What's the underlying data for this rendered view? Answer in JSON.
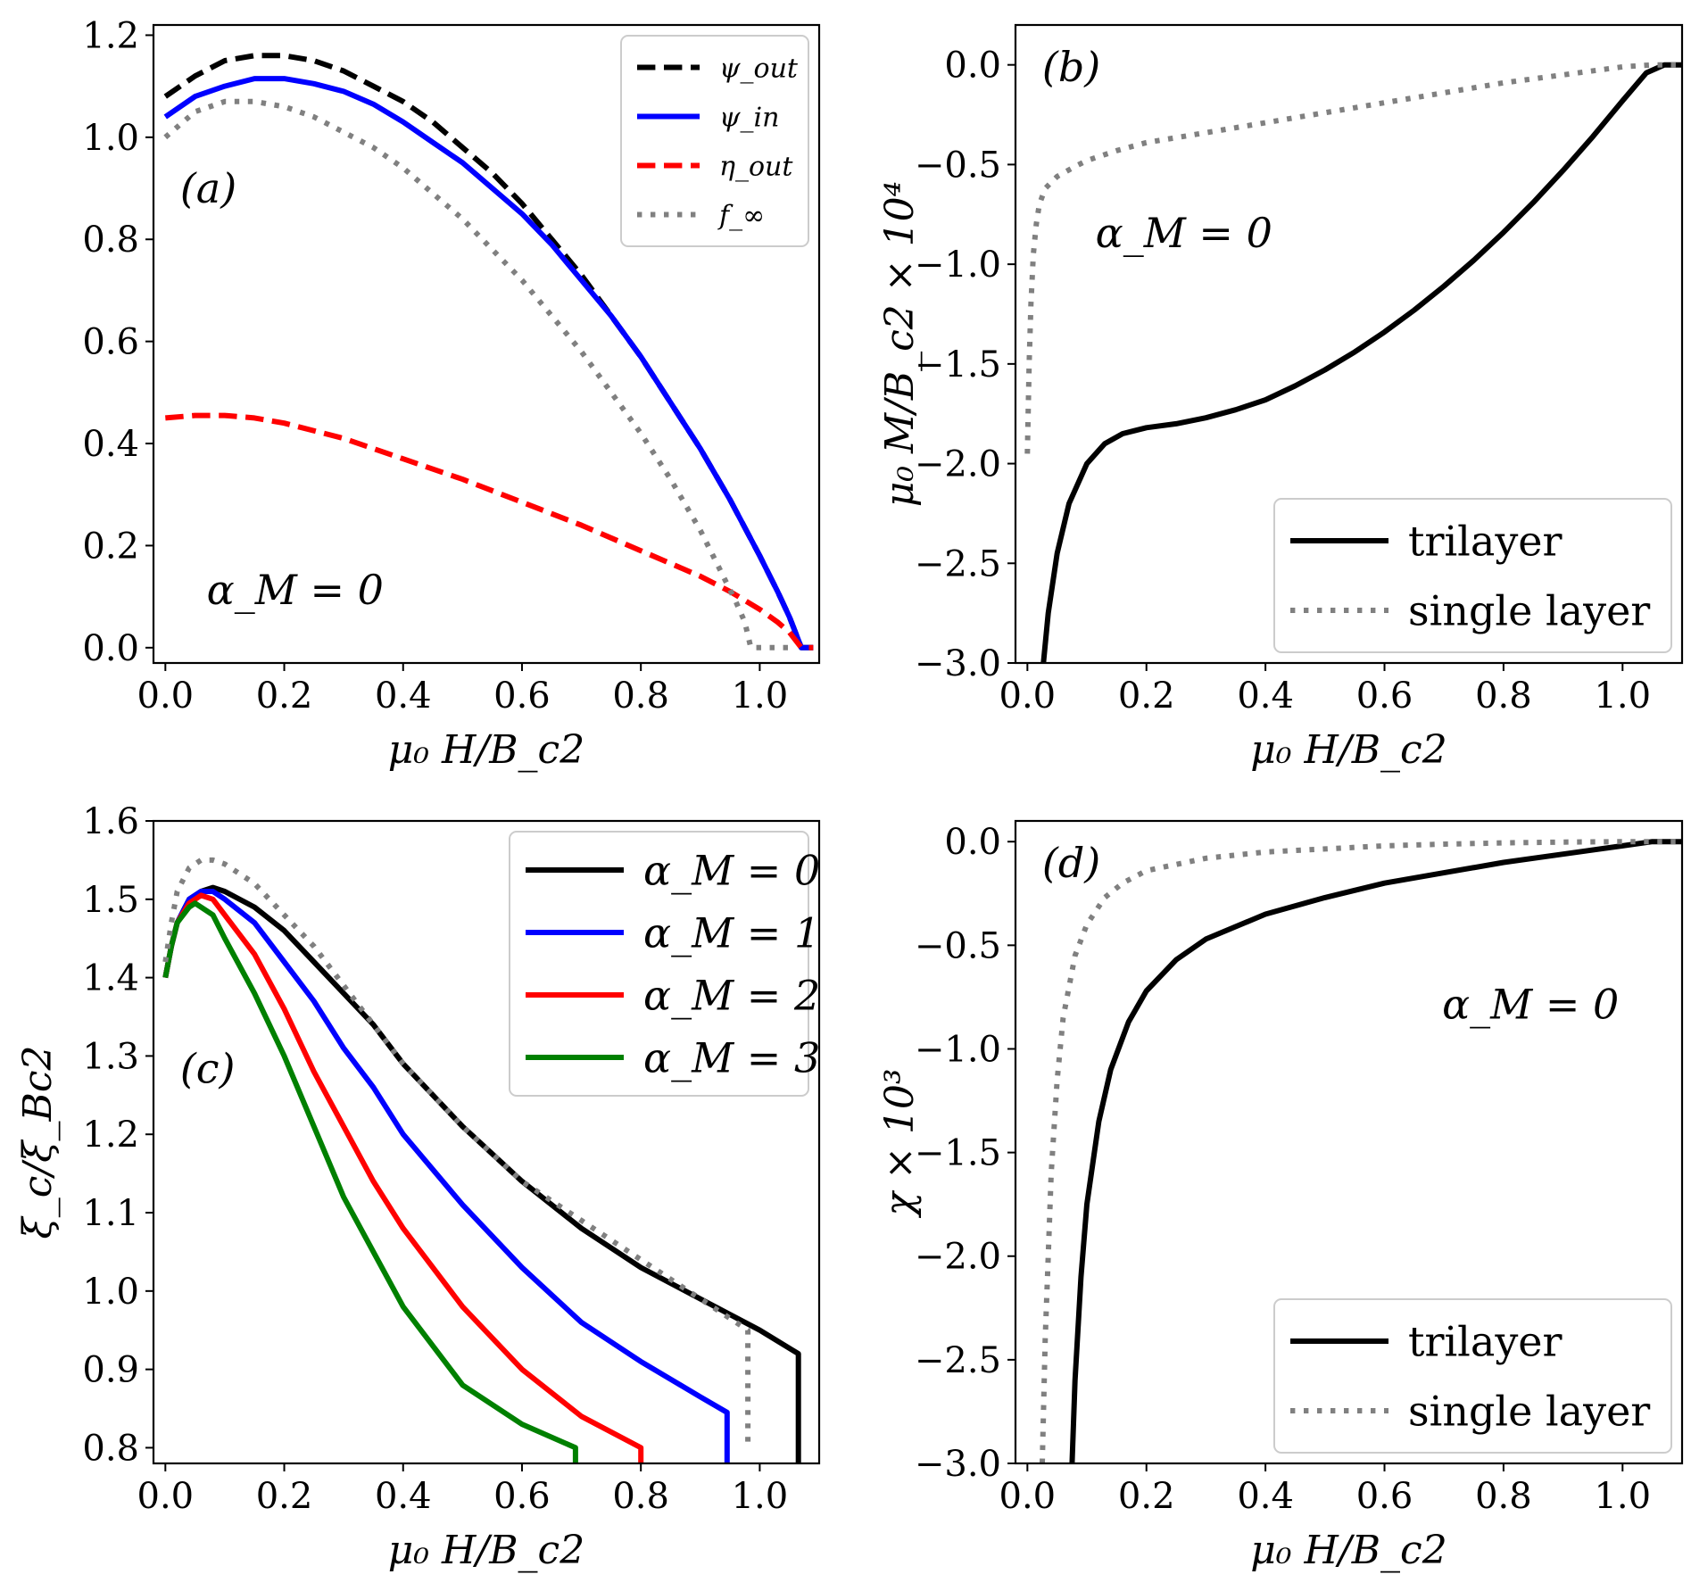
{
  "chart_data": [
    {
      "panel": "a",
      "type": "line",
      "panel_label": "(a)",
      "annotation": "α_M = 0",
      "xlabel": "μ₀ H/B_c2",
      "ylabel": "",
      "xlim": [
        -0.02,
        1.1
      ],
      "ylim": [
        -0.03,
        1.22
      ],
      "xticks": [
        0.0,
        0.2,
        0.4,
        0.6,
        0.8,
        1.0
      ],
      "yticks": [
        0.0,
        0.2,
        0.4,
        0.6,
        0.8,
        1.0,
        1.2
      ],
      "xtick_labels": [
        "0.0",
        "0.2",
        "0.4",
        "0.6",
        "0.8",
        "1.0"
      ],
      "ytick_labels": [
        "0.0",
        "0.2",
        "0.4",
        "0.6",
        "0.8",
        "1.0",
        "1.2"
      ],
      "legend": "top-right",
      "series": [
        {
          "name": "ψ_out",
          "color": "#000000",
          "style": "dashed",
          "x": [
            0,
            0.05,
            0.1,
            0.15,
            0.2,
            0.25,
            0.3,
            0.35,
            0.4,
            0.45,
            0.5,
            0.55,
            0.6,
            0.65,
            0.7,
            0.75,
            0.8,
            0.85,
            0.9,
            0.95,
            1.0,
            1.03,
            1.05,
            1.06,
            1.07,
            1.09
          ],
          "y": [
            1.08,
            1.12,
            1.15,
            1.16,
            1.16,
            1.15,
            1.13,
            1.1,
            1.07,
            1.03,
            0.98,
            0.93,
            0.87,
            0.8,
            0.73,
            0.65,
            0.57,
            0.48,
            0.39,
            0.29,
            0.18,
            0.11,
            0.06,
            0.03,
            0.0,
            0.0
          ]
        },
        {
          "name": "ψ_in",
          "color": "#0000ff",
          "style": "solid",
          "x": [
            0,
            0.05,
            0.1,
            0.15,
            0.2,
            0.25,
            0.3,
            0.35,
            0.4,
            0.45,
            0.5,
            0.55,
            0.6,
            0.65,
            0.7,
            0.75,
            0.8,
            0.85,
            0.9,
            0.95,
            1.0,
            1.03,
            1.05,
            1.06,
            1.07,
            1.09
          ],
          "y": [
            1.04,
            1.08,
            1.1,
            1.115,
            1.115,
            1.105,
            1.09,
            1.065,
            1.03,
            0.99,
            0.95,
            0.9,
            0.85,
            0.79,
            0.72,
            0.65,
            0.57,
            0.48,
            0.39,
            0.29,
            0.18,
            0.11,
            0.06,
            0.03,
            0.0,
            0.0
          ]
        },
        {
          "name": "η_out",
          "color": "#ff0000",
          "style": "dashed",
          "x": [
            0,
            0.05,
            0.1,
            0.15,
            0.2,
            0.3,
            0.4,
            0.5,
            0.6,
            0.7,
            0.8,
            0.9,
            0.95,
            1.0,
            1.03,
            1.05,
            1.06,
            1.07,
            1.09
          ],
          "y": [
            0.45,
            0.455,
            0.455,
            0.45,
            0.44,
            0.41,
            0.37,
            0.33,
            0.285,
            0.24,
            0.19,
            0.14,
            0.11,
            0.075,
            0.05,
            0.03,
            0.015,
            0.0,
            0.0
          ]
        },
        {
          "name": "f_∞",
          "color": "#808080",
          "style": "dotted",
          "x": [
            0,
            0.05,
            0.1,
            0.15,
            0.2,
            0.25,
            0.3,
            0.35,
            0.4,
            0.45,
            0.5,
            0.55,
            0.6,
            0.65,
            0.7,
            0.75,
            0.8,
            0.85,
            0.9,
            0.93,
            0.96,
            0.975,
            0.985,
            1.0,
            1.06
          ],
          "y": [
            1.0,
            1.05,
            1.07,
            1.07,
            1.06,
            1.04,
            1.01,
            0.98,
            0.94,
            0.89,
            0.84,
            0.78,
            0.72,
            0.65,
            0.58,
            0.5,
            0.42,
            0.33,
            0.23,
            0.16,
            0.09,
            0.05,
            0.0,
            0.0,
            0.0
          ]
        }
      ]
    },
    {
      "panel": "b",
      "type": "line",
      "panel_label": "(b)",
      "annotation": "α_M = 0",
      "xlabel": "μ₀ H/B_c2",
      "ylabel": "μ₀ M/B_c2 × 10⁴",
      "xlim": [
        -0.02,
        1.1
      ],
      "ylim": [
        -3.0,
        0.2
      ],
      "xticks": [
        0.0,
        0.2,
        0.4,
        0.6,
        0.8,
        1.0
      ],
      "yticks": [
        -3.0,
        -2.5,
        -2.0,
        -1.5,
        -1.0,
        -0.5,
        0.0
      ],
      "xtick_labels": [
        "0.0",
        "0.2",
        "0.4",
        "0.6",
        "0.8",
        "1.0"
      ],
      "ytick_labels": [
        "−3.0",
        "−2.5",
        "−2.0",
        "−1.5",
        "−1.0",
        "−0.5",
        "0.0"
      ],
      "legend": "bottom-right",
      "series": [
        {
          "name": "trilayer",
          "color": "#000000",
          "style": "solid",
          "x": [
            0.027,
            0.035,
            0.05,
            0.07,
            0.1,
            0.13,
            0.16,
            0.2,
            0.25,
            0.3,
            0.35,
            0.4,
            0.45,
            0.5,
            0.55,
            0.6,
            0.65,
            0.7,
            0.75,
            0.8,
            0.85,
            0.9,
            0.95,
            1.0,
            1.04,
            1.07,
            1.1
          ],
          "y": [
            -3.0,
            -2.75,
            -2.45,
            -2.2,
            -2.0,
            -1.9,
            -1.85,
            -1.82,
            -1.8,
            -1.77,
            -1.73,
            -1.68,
            -1.61,
            -1.53,
            -1.44,
            -1.34,
            -1.23,
            -1.11,
            -0.98,
            -0.84,
            -0.69,
            -0.53,
            -0.36,
            -0.18,
            -0.04,
            0.0,
            0.0
          ]
        },
        {
          "name": "single layer",
          "color": "#808080",
          "style": "dotted",
          "x": [
            0.0,
            0.003,
            0.006,
            0.01,
            0.015,
            0.02,
            0.03,
            0.05,
            0.08,
            0.1,
            0.15,
            0.2,
            0.3,
            0.4,
            0.5,
            0.6,
            0.7,
            0.8,
            0.9,
            1.0,
            1.05,
            1.1
          ],
          "y": [
            -1.95,
            -1.5,
            -1.2,
            -0.95,
            -0.8,
            -0.7,
            -0.62,
            -0.56,
            -0.51,
            -0.48,
            -0.43,
            -0.39,
            -0.34,
            -0.29,
            -0.24,
            -0.19,
            -0.14,
            -0.09,
            -0.05,
            -0.01,
            0.0,
            0.0
          ]
        }
      ]
    },
    {
      "panel": "c",
      "type": "line",
      "panel_label": "(c)",
      "annotation": "",
      "xlabel": "μ₀ H/B_c2",
      "ylabel": "ξ_c/ξ_Bc2",
      "xlim": [
        -0.02,
        1.1
      ],
      "ylim": [
        0.78,
        1.6
      ],
      "xticks": [
        0.0,
        0.2,
        0.4,
        0.6,
        0.8,
        1.0
      ],
      "yticks": [
        0.8,
        0.9,
        1.0,
        1.1,
        1.2,
        1.3,
        1.4,
        1.5,
        1.6
      ],
      "xtick_labels": [
        "0.0",
        "0.2",
        "0.4",
        "0.6",
        "0.8",
        "1.0"
      ],
      "ytick_labels": [
        "0.8",
        "0.9",
        "1.0",
        "1.1",
        "1.2",
        "1.3",
        "1.4",
        "1.5",
        "1.6"
      ],
      "legend": "top-right",
      "series": [
        {
          "name": "α_M = 0",
          "color": "#000000",
          "style": "solid",
          "x": [
            0,
            0.01,
            0.02,
            0.04,
            0.06,
            0.08,
            0.1,
            0.15,
            0.2,
            0.25,
            0.3,
            0.35,
            0.4,
            0.5,
            0.6,
            0.7,
            0.8,
            0.9,
            1.0,
            1.065,
            1.065
          ],
          "y": [
            1.4,
            1.44,
            1.47,
            1.5,
            1.51,
            1.515,
            1.51,
            1.49,
            1.46,
            1.42,
            1.38,
            1.34,
            1.29,
            1.21,
            1.14,
            1.08,
            1.03,
            0.99,
            0.95,
            0.92,
            0.78
          ]
        },
        {
          "name": "α_M = 1",
          "color": "#0000ff",
          "style": "solid",
          "x": [
            0,
            0.01,
            0.02,
            0.04,
            0.06,
            0.08,
            0.1,
            0.15,
            0.2,
            0.25,
            0.3,
            0.35,
            0.4,
            0.5,
            0.6,
            0.7,
            0.8,
            0.9,
            0.945,
            0.945
          ],
          "y": [
            1.4,
            1.44,
            1.47,
            1.5,
            1.51,
            1.51,
            1.5,
            1.47,
            1.42,
            1.37,
            1.31,
            1.26,
            1.2,
            1.11,
            1.03,
            0.96,
            0.91,
            0.865,
            0.845,
            0.78
          ]
        },
        {
          "name": "α_M = 2",
          "color": "#ff0000",
          "style": "solid",
          "x": [
            0,
            0.01,
            0.02,
            0.04,
            0.06,
            0.08,
            0.1,
            0.15,
            0.2,
            0.25,
            0.3,
            0.35,
            0.4,
            0.5,
            0.6,
            0.7,
            0.8,
            0.8
          ],
          "y": [
            1.4,
            1.44,
            1.47,
            1.495,
            1.505,
            1.5,
            1.48,
            1.43,
            1.36,
            1.28,
            1.21,
            1.14,
            1.08,
            0.98,
            0.9,
            0.84,
            0.8,
            0.78
          ]
        },
        {
          "name": "α_M = 3",
          "color": "#008000",
          "style": "solid",
          "x": [
            0,
            0.01,
            0.02,
            0.04,
            0.05,
            0.06,
            0.08,
            0.1,
            0.15,
            0.2,
            0.25,
            0.3,
            0.35,
            0.4,
            0.5,
            0.6,
            0.69,
            0.69
          ],
          "y": [
            1.4,
            1.44,
            1.47,
            1.49,
            1.495,
            1.49,
            1.48,
            1.45,
            1.38,
            1.3,
            1.21,
            1.12,
            1.05,
            0.98,
            0.88,
            0.83,
            0.8,
            0.78
          ]
        },
        {
          "name": "",
          "color": "#808080",
          "style": "dotted",
          "x": [
            0,
            0.01,
            0.02,
            0.04,
            0.06,
            0.08,
            0.1,
            0.15,
            0.2,
            0.25,
            0.3,
            0.35,
            0.4,
            0.5,
            0.6,
            0.7,
            0.8,
            0.9,
            0.98,
            0.98
          ],
          "y": [
            1.42,
            1.47,
            1.51,
            1.54,
            1.55,
            1.55,
            1.545,
            1.52,
            1.48,
            1.44,
            1.39,
            1.34,
            1.29,
            1.21,
            1.14,
            1.09,
            1.04,
            0.99,
            0.95,
            0.8
          ]
        }
      ]
    },
    {
      "panel": "d",
      "type": "line",
      "panel_label": "(d)",
      "annotation": "α_M = 0",
      "xlabel": "μ₀ H/B_c2",
      "ylabel": "χ × 10³",
      "xlim": [
        -0.02,
        1.1
      ],
      "ylim": [
        -3.0,
        0.1
      ],
      "xticks": [
        0.0,
        0.2,
        0.4,
        0.6,
        0.8,
        1.0
      ],
      "yticks": [
        -3.0,
        -2.5,
        -2.0,
        -1.5,
        -1.0,
        -0.5,
        0.0
      ],
      "xtick_labels": [
        "0.0",
        "0.2",
        "0.4",
        "0.6",
        "0.8",
        "1.0"
      ],
      "ytick_labels": [
        "−3.0",
        "−2.5",
        "−2.0",
        "−1.5",
        "−1.0",
        "−0.5",
        "0.0"
      ],
      "legend": "bottom-right",
      "series": [
        {
          "name": "trilayer",
          "color": "#000000",
          "style": "solid",
          "x": [
            0.075,
            0.08,
            0.09,
            0.1,
            0.12,
            0.14,
            0.17,
            0.2,
            0.25,
            0.3,
            0.4,
            0.5,
            0.6,
            0.7,
            0.8,
            0.9,
            1.0,
            1.05,
            1.1
          ],
          "y": [
            -3.0,
            -2.6,
            -2.1,
            -1.75,
            -1.35,
            -1.1,
            -0.87,
            -0.72,
            -0.57,
            -0.47,
            -0.35,
            -0.27,
            -0.2,
            -0.15,
            -0.1,
            -0.06,
            -0.02,
            0.0,
            0.0
          ]
        },
        {
          "name": "single layer",
          "color": "#808080",
          "style": "dotted",
          "x": [
            0.025,
            0.03,
            0.035,
            0.04,
            0.05,
            0.06,
            0.08,
            0.1,
            0.13,
            0.16,
            0.2,
            0.3,
            0.4,
            0.5,
            0.6,
            0.7,
            0.8,
            0.9,
            1.0,
            1.1
          ],
          "y": [
            -3.0,
            -2.4,
            -2.0,
            -1.6,
            -1.15,
            -0.85,
            -0.55,
            -0.4,
            -0.27,
            -0.2,
            -0.14,
            -0.08,
            -0.05,
            -0.035,
            -0.02,
            -0.012,
            -0.006,
            -0.002,
            0.0,
            0.0
          ]
        }
      ]
    }
  ]
}
